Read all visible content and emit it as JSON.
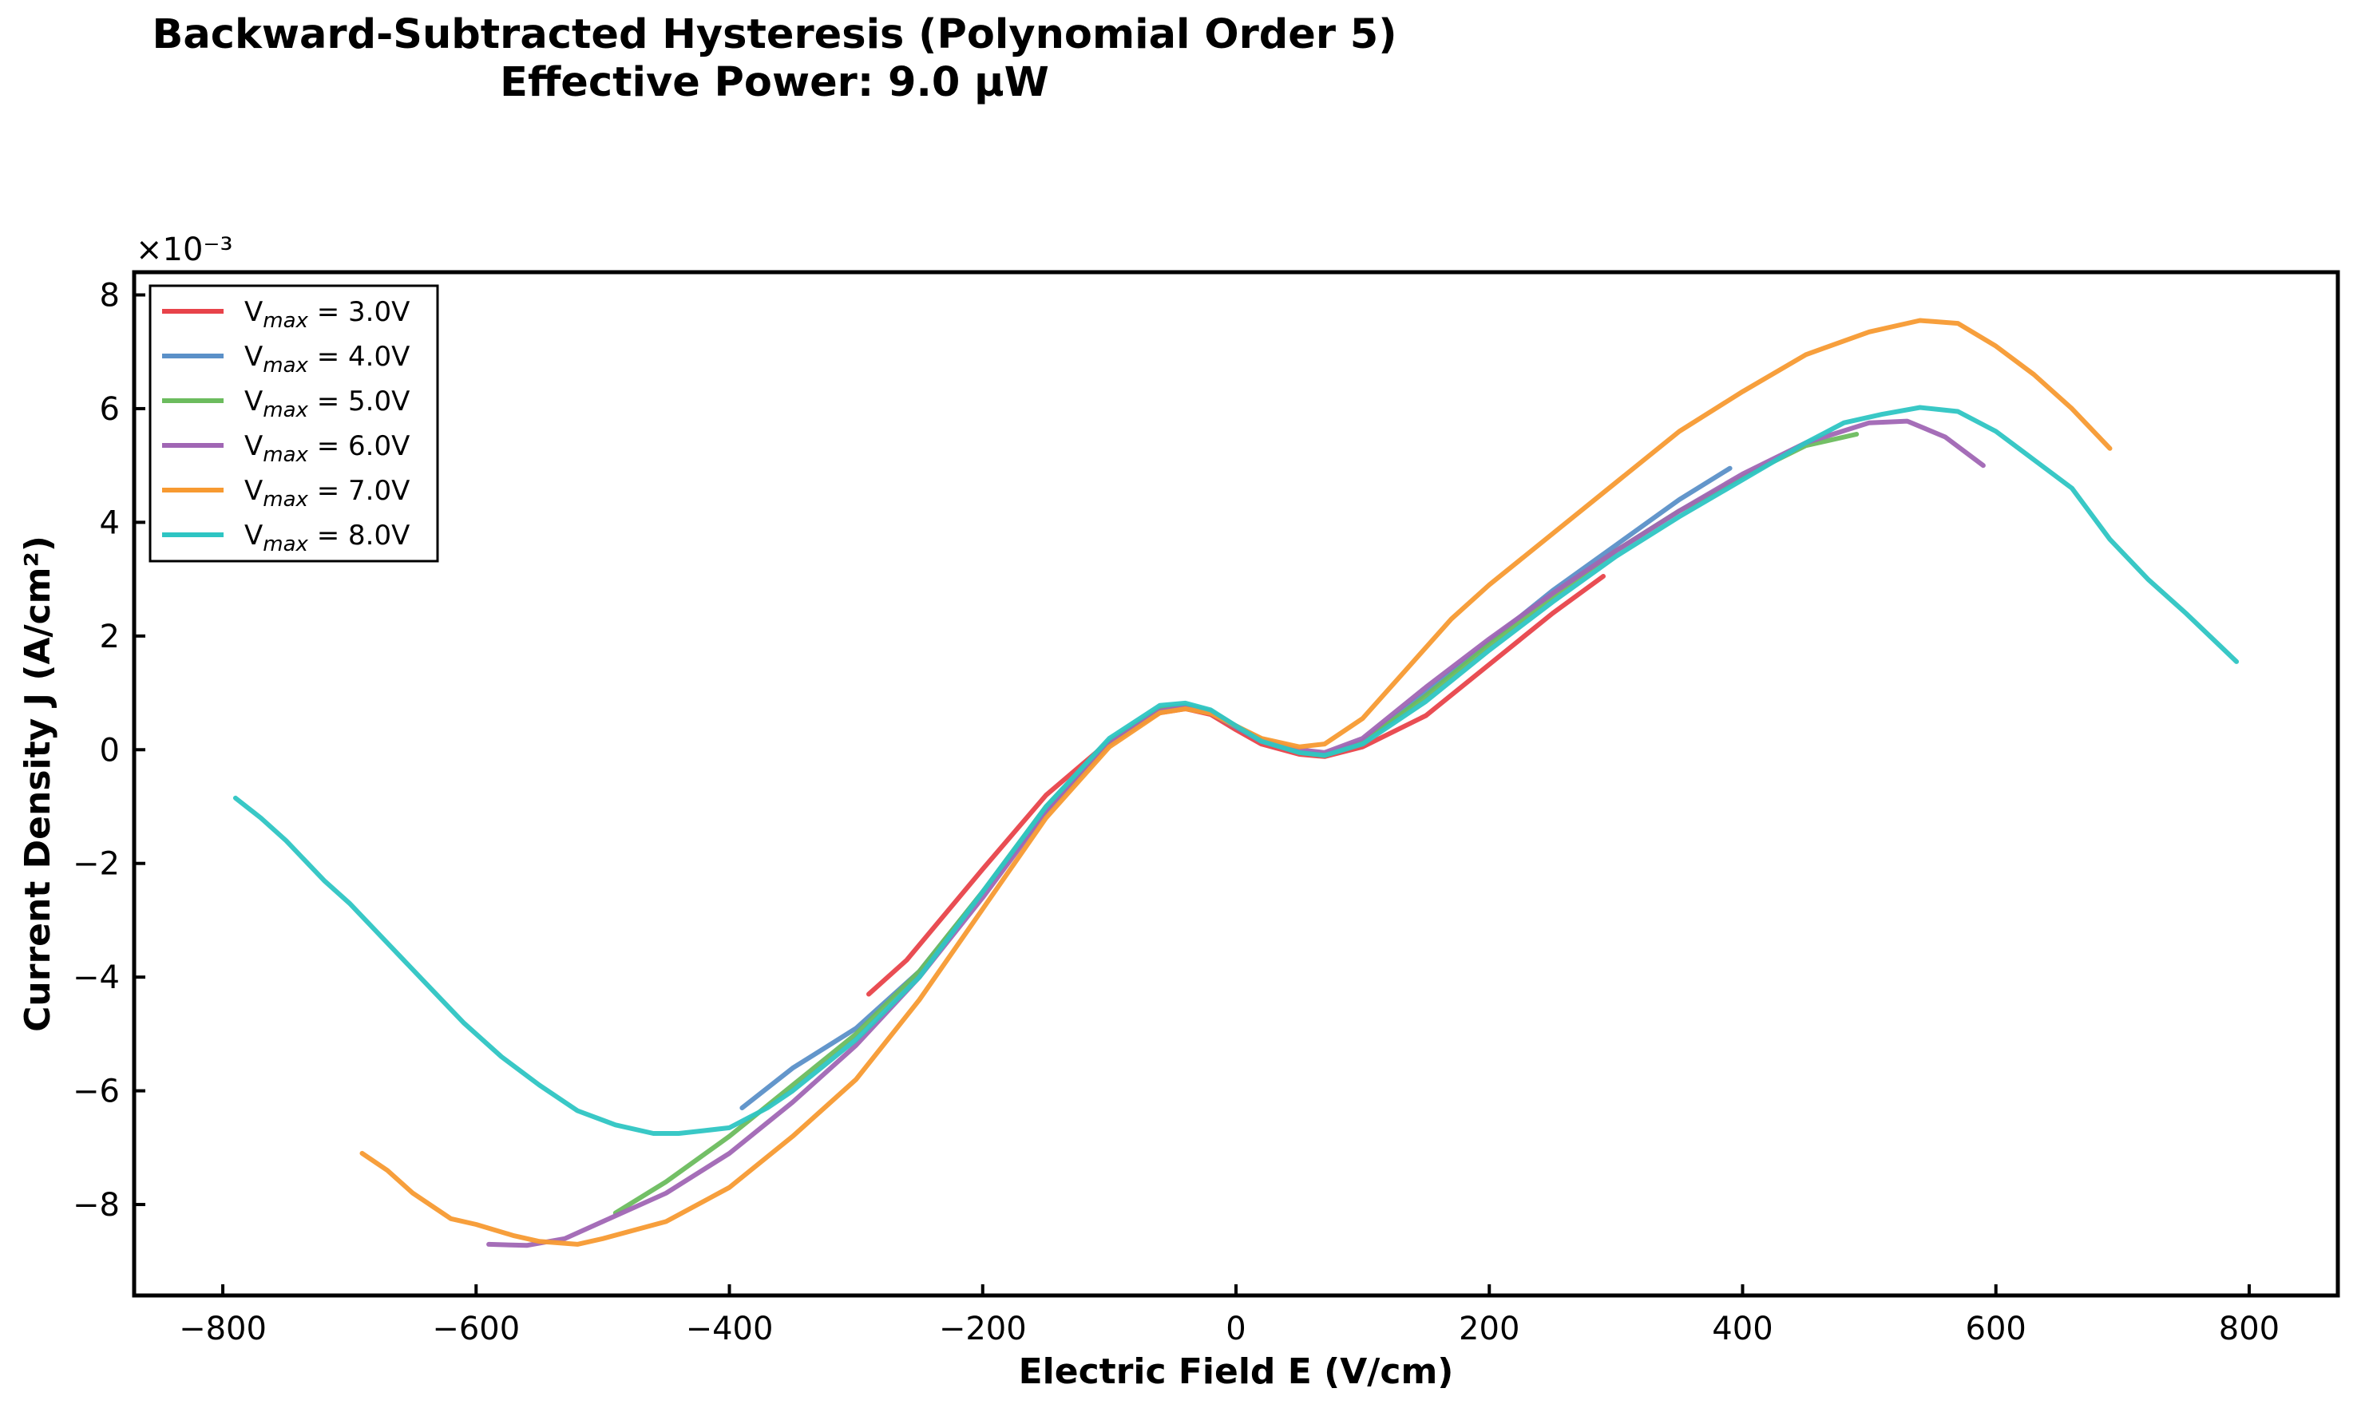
{
  "chart_data": {
    "type": "line",
    "title": "Backward-Subtracted Hysteresis (Polynomial Order 5)",
    "subtitle": "Effective Power: 9.0 µW",
    "xlabel": "Electric Field E (V/cm)",
    "ylabel": "Current Density J (A/cm²)",
    "y_scale_label": "×10⁻³",
    "xlim": [
      -870,
      870
    ],
    "ylim": [
      -9.6,
      8.4
    ],
    "xticks": [
      -800,
      -600,
      -400,
      -200,
      0,
      200,
      400,
      600,
      800
    ],
    "yticks": [
      -8,
      -6,
      -4,
      -2,
      0,
      2,
      4,
      6,
      8
    ],
    "grid": false,
    "legend_position": "upper-left",
    "series": [
      {
        "name": "Vmax = 3.0V",
        "legend_base": "V",
        "legend_sub": "max",
        "legend_tail": " = 3.0V",
        "color": "#e8434a",
        "x": [
          -290,
          -260,
          -200,
          -150,
          -100,
          -60,
          -40,
          -20,
          0,
          20,
          50,
          70,
          100,
          150,
          200,
          250,
          290
        ],
        "y": [
          -4.3,
          -3.7,
          -2.1,
          -0.8,
          0.15,
          0.65,
          0.72,
          0.62,
          0.35,
          0.1,
          -0.08,
          -0.12,
          0.05,
          0.6,
          1.5,
          2.4,
          3.05
        ]
      },
      {
        "name": "Vmax = 4.0V",
        "legend_base": "V",
        "legend_sub": "max",
        "legend_tail": " = 4.0V",
        "color": "#5b90c8",
        "x": [
          -390,
          -350,
          -300,
          -250,
          -200,
          -150,
          -100,
          -60,
          -40,
          -20,
          0,
          20,
          50,
          70,
          100,
          150,
          200,
          250,
          300,
          350,
          390
        ],
        "y": [
          -6.3,
          -5.6,
          -4.9,
          -3.9,
          -2.5,
          -1.1,
          0.1,
          0.7,
          0.75,
          0.65,
          0.4,
          0.15,
          -0.05,
          -0.08,
          0.15,
          1.0,
          1.9,
          2.8,
          3.6,
          4.4,
          4.95
        ]
      },
      {
        "name": "Vmax = 5.0V",
        "legend_base": "V",
        "legend_sub": "max",
        "legend_tail": " = 5.0V",
        "color": "#6cbc5e",
        "x": [
          -490,
          -450,
          -400,
          -350,
          -300,
          -250,
          -200,
          -150,
          -100,
          -60,
          -40,
          -20,
          0,
          20,
          50,
          70,
          100,
          150,
          200,
          250,
          300,
          350,
          400,
          450,
          490
        ],
        "y": [
          -8.15,
          -7.6,
          -6.8,
          -5.9,
          -5.0,
          -3.9,
          -2.5,
          -1.0,
          0.15,
          0.72,
          0.78,
          0.68,
          0.42,
          0.18,
          -0.05,
          -0.1,
          0.12,
          0.95,
          1.85,
          2.7,
          3.5,
          4.2,
          4.8,
          5.35,
          5.55
        ]
      },
      {
        "name": "Vmax = 6.0V",
        "legend_base": "V",
        "legend_sub": "max",
        "legend_tail": " = 6.0V",
        "color": "#a066b4",
        "x": [
          -590,
          -560,
          -530,
          -500,
          -450,
          -400,
          -350,
          -300,
          -250,
          -200,
          -150,
          -100,
          -60,
          -40,
          -20,
          0,
          20,
          50,
          70,
          100,
          150,
          200,
          250,
          300,
          350,
          400,
          450,
          500,
          530,
          560,
          590
        ],
        "y": [
          -8.7,
          -8.72,
          -8.6,
          -8.3,
          -7.8,
          -7.1,
          -6.2,
          -5.2,
          -4.0,
          -2.6,
          -1.1,
          0.1,
          0.68,
          0.75,
          0.66,
          0.42,
          0.18,
          0.0,
          -0.05,
          0.2,
          1.1,
          1.95,
          2.75,
          3.5,
          4.2,
          4.85,
          5.4,
          5.75,
          5.78,
          5.5,
          5.0
        ]
      },
      {
        "name": "Vmax = 7.0V",
        "legend_base": "V",
        "legend_sub": "max",
        "legend_tail": " = 7.0V",
        "color": "#f79a31",
        "x": [
          -690,
          -670,
          -650,
          -620,
          -600,
          -570,
          -550,
          -520,
          -500,
          -450,
          -400,
          -350,
          -300,
          -250,
          -200,
          -150,
          -100,
          -60,
          -40,
          -20,
          0,
          20,
          50,
          70,
          100,
          130,
          170,
          200,
          250,
          300,
          350,
          400,
          450,
          500,
          540,
          570,
          600,
          630,
          660,
          690
        ],
        "y": [
          -7.1,
          -7.4,
          -7.8,
          -8.25,
          -8.35,
          -8.55,
          -8.65,
          -8.7,
          -8.6,
          -8.3,
          -7.7,
          -6.8,
          -5.8,
          -4.4,
          -2.8,
          -1.2,
          0.05,
          0.65,
          0.72,
          0.64,
          0.42,
          0.2,
          0.05,
          0.1,
          0.55,
          1.3,
          2.3,
          2.9,
          3.8,
          4.7,
          5.6,
          6.3,
          6.95,
          7.35,
          7.55,
          7.5,
          7.1,
          6.6,
          6.0,
          5.3
        ]
      },
      {
        "name": "Vmax = 8.0V",
        "legend_base": "V",
        "legend_sub": "max",
        "legend_tail": " = 8.0V",
        "color": "#2ec5c3",
        "x": [
          -790,
          -770,
          -750,
          -720,
          -700,
          -670,
          -640,
          -610,
          -580,
          -550,
          -520,
          -490,
          -460,
          -440,
          -420,
          -400,
          -370,
          -350,
          -300,
          -250,
          -200,
          -150,
          -100,
          -60,
          -40,
          -20,
          0,
          20,
          50,
          70,
          100,
          150,
          200,
          250,
          300,
          350,
          400,
          450,
          480,
          510,
          540,
          570,
          600,
          630,
          660,
          690,
          720,
          750,
          790
        ],
        "y": [
          -0.85,
          -1.2,
          -1.6,
          -2.3,
          -2.7,
          -3.4,
          -4.1,
          -4.8,
          -5.4,
          -5.9,
          -6.35,
          -6.6,
          -6.75,
          -6.75,
          -6.7,
          -6.65,
          -6.3,
          -6.0,
          -5.1,
          -4.0,
          -2.5,
          -1.0,
          0.2,
          0.78,
          0.82,
          0.7,
          0.42,
          0.15,
          -0.05,
          -0.1,
          0.1,
          0.85,
          1.75,
          2.6,
          3.4,
          4.1,
          4.75,
          5.4,
          5.75,
          5.9,
          6.02,
          5.95,
          5.6,
          5.1,
          4.6,
          3.7,
          3.0,
          2.4,
          1.55
        ]
      }
    ]
  }
}
